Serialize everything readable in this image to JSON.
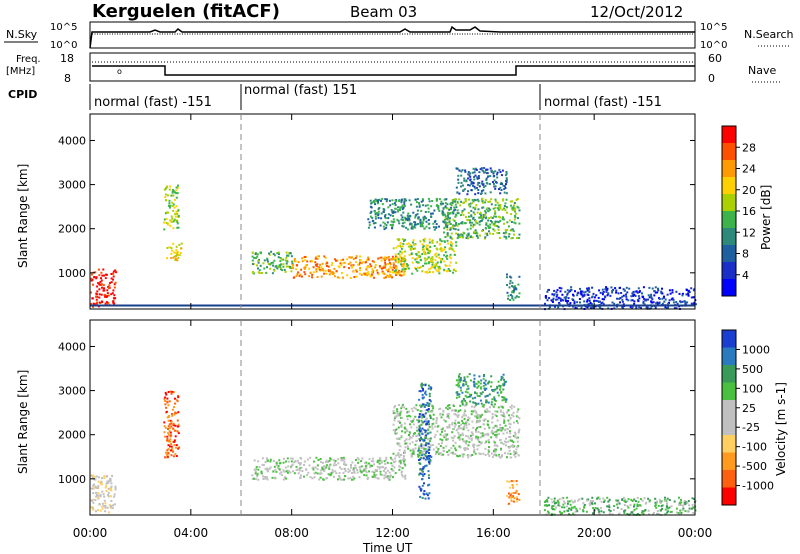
{
  "header": {
    "station": "Kerguelen (fitACF)",
    "beam": "Beam 03",
    "date": "12/Oct/2012"
  },
  "noise_panel": {
    "left_label": "N.Sky",
    "right_label": "N.Search",
    "left_ticks": [
      "10^5",
      "10^0"
    ],
    "right_ticks": [
      "10^5",
      "10^0"
    ]
  },
  "freq_panel": {
    "left_label_line1": "Freq.",
    "left_label_line2": "[MHz]",
    "left_ticks": [
      "18",
      "8"
    ],
    "right_label": "Nave",
    "right_ticks": [
      "60",
      "0"
    ]
  },
  "cpid": {
    "label": "CPID",
    "segments": [
      {
        "text": "normal (fast) -151",
        "start_hour": 0,
        "end_hour": 6
      },
      {
        "text": "normal (fast) 151",
        "start_hour": 6,
        "end_hour": 18
      },
      {
        "text": "normal (fast) -151",
        "start_hour": 18,
        "end_hour": 24
      }
    ]
  },
  "chart_data": [
    {
      "type": "heatmap",
      "title": "",
      "xlabel": "Time UT",
      "ylabel": "Slant Range [km]",
      "x_ticks": [
        "00:00",
        "04:00",
        "08:00",
        "12:00",
        "16:00",
        "20:00",
        "00:00"
      ],
      "y_ticks": [
        1000,
        2000,
        3000,
        4000
      ],
      "xlim": [
        0,
        24
      ],
      "ylim": [
        180,
        4600
      ],
      "colorbar": {
        "label": "Power [dB]",
        "ticks": [
          "28",
          "24",
          "20",
          "16",
          "12",
          "8",
          "4"
        ],
        "colors": [
          "#ff0000",
          "#ff5000",
          "#ff9a00",
          "#ffd000",
          "#aad000",
          "#3cb44b",
          "#2d8a7a",
          "#1e5fa0",
          "#1a2fc8",
          "#0000ff"
        ]
      },
      "regions": [
        {
          "t0": 0.0,
          "t1": 1.0,
          "r0": 250,
          "r1": 1100,
          "level": 9
        },
        {
          "t0": 2.9,
          "t1": 3.5,
          "r0": 2000,
          "r1": 3000,
          "level": 5
        },
        {
          "t0": 3.0,
          "t1": 3.6,
          "r0": 1300,
          "r1": 1700,
          "level": 6
        },
        {
          "t0": 6.4,
          "t1": 8.0,
          "r0": 1000,
          "r1": 1500,
          "level": 4
        },
        {
          "t0": 8.0,
          "t1": 12.5,
          "r0": 900,
          "r1": 1400,
          "level": 7
        },
        {
          "t0": 12.0,
          "t1": 14.5,
          "r0": 1000,
          "r1": 1800,
          "level": 5
        },
        {
          "t0": 11.0,
          "t1": 14.5,
          "r0": 2000,
          "r1": 2700,
          "level": 3
        },
        {
          "t0": 14.0,
          "t1": 17.0,
          "r0": 1800,
          "r1": 2700,
          "level": 4
        },
        {
          "t0": 14.5,
          "t1": 16.5,
          "r0": 2800,
          "r1": 3400,
          "level": 2
        },
        {
          "t0": 16.5,
          "t1": 17.0,
          "r0": 400,
          "r1": 1000,
          "level": 3
        },
        {
          "t0": 18.0,
          "t1": 24.0,
          "r0": 200,
          "r1": 700,
          "level": 1
        }
      ]
    },
    {
      "type": "heatmap",
      "title": "",
      "xlabel": "Time UT",
      "ylabel": "Slant Range [km]",
      "x_ticks": [
        "00:00",
        "04:00",
        "08:00",
        "12:00",
        "16:00",
        "20:00",
        "00:00"
      ],
      "y_ticks": [
        1000,
        2000,
        3000,
        4000
      ],
      "xlim": [
        0,
        24
      ],
      "ylim": [
        180,
        4600
      ],
      "colorbar": {
        "label": "Velocity [m s-1]",
        "ticks": [
          "1000",
          "500",
          "100",
          "25",
          "-25",
          "-100",
          "-500",
          "-1000"
        ],
        "colors": [
          "#1a3fd0",
          "#2a7ac0",
          "#3a9a5a",
          "#4ac040",
          "#c0c0c0",
          "#c0c0c0",
          "#ffd060",
          "#ff9a20",
          "#ff6010",
          "#ff0000"
        ]
      },
      "regions": [
        {
          "t0": 0.0,
          "t1": 1.0,
          "r0": 250,
          "r1": 1100,
          "level": 4
        },
        {
          "t0": 2.9,
          "t1": 3.5,
          "r0": 1500,
          "r1": 3000,
          "level": 1
        },
        {
          "t0": 6.4,
          "t1": 12.5,
          "r0": 1000,
          "r1": 1500,
          "level": 5
        },
        {
          "t0": 12.0,
          "t1": 17.0,
          "r0": 1500,
          "r1": 2700,
          "level": 5
        },
        {
          "t0": 13.0,
          "t1": 13.5,
          "r0": 500,
          "r1": 3200,
          "level": 8
        },
        {
          "t0": 14.5,
          "t1": 16.5,
          "r0": 2700,
          "r1": 3400,
          "level": 7
        },
        {
          "t0": 16.5,
          "t1": 17.0,
          "r0": 400,
          "r1": 1000,
          "level": 2
        },
        {
          "t0": 18.0,
          "t1": 24.0,
          "r0": 200,
          "r1": 600,
          "level": 6
        }
      ]
    }
  ]
}
